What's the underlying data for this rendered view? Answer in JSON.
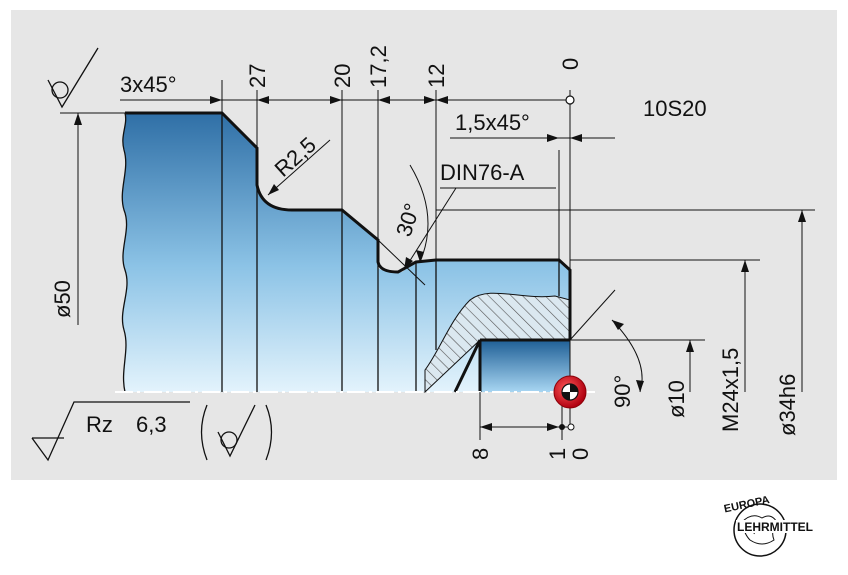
{
  "drawing": {
    "material": "10S20",
    "dimensions": {
      "chamfer_left": "3x45°",
      "radius": "R2,5",
      "chamfer_right": "1,5x45°",
      "undercut": "DIN76-A",
      "angle_30": "30°",
      "angle_90": "90°",
      "dia_50": "ø50",
      "dia_10": "ø10",
      "thread": "M24x1,5",
      "dia_34": "ø34h6"
    },
    "top_ticks": [
      "27",
      "20",
      "17,2",
      "12",
      "0"
    ],
    "bottom_ticks": [
      "8",
      "1",
      "0"
    ],
    "surface": {
      "label": "Rz",
      "value": "6,3"
    }
  },
  "logo": {
    "line1": "EUROPA",
    "line2": "LEHRMITTEL"
  },
  "colors": {
    "panel_bg": "#e6e6e6",
    "part_dark": "#2f6fa6",
    "part_light": "#d6eefb",
    "center_mark": "#d0141c"
  }
}
